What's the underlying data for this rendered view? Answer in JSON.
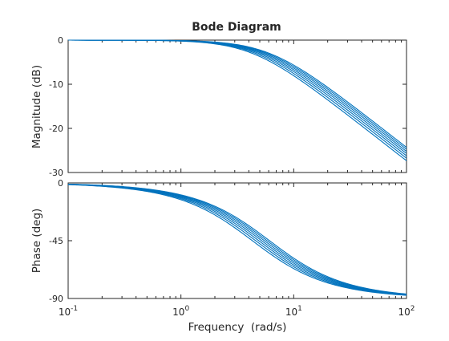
{
  "chart_data": [
    {
      "type": "line",
      "title": "Bode Diagram",
      "ylabel": "Magnitude (dB)",
      "xlabel": "",
      "xscale": "log",
      "xlim": [
        0.1,
        100
      ],
      "ylim": [
        -30,
        0
      ],
      "yticks": [
        0,
        -10,
        -20,
        -30
      ],
      "ytick_labels": [
        "0",
        "-10",
        "-20",
        "-30"
      ],
      "grid": false,
      "color": "#0072bd",
      "model": "first-order low-pass, magnitude = -10*log10(1+(w/wc)^2)",
      "series": [
        {
          "wc": 4.3
        },
        {
          "wc": 4.6
        },
        {
          "wc": 4.9
        },
        {
          "wc": 5.2
        },
        {
          "wc": 5.5
        },
        {
          "wc": 5.8
        },
        {
          "wc": 6.1
        }
      ]
    },
    {
      "type": "line",
      "title": "",
      "ylabel": "Phase (deg)",
      "xlabel": "Frequency  (rad/s)",
      "xscale": "log",
      "xlim": [
        0.1,
        100
      ],
      "ylim": [
        -90,
        0
      ],
      "yticks": [
        0,
        -45,
        -90
      ],
      "ytick_labels": [
        "0",
        "-45",
        "-90"
      ],
      "xtick_bases": [
        "10",
        "10",
        "10",
        "10"
      ],
      "xtick_exponents": [
        "-1",
        "0",
        "1",
        "2"
      ],
      "grid": false,
      "color": "#0072bd",
      "model": "first-order low-pass, phase = -atan(w/wc) in degrees",
      "series": [
        {
          "wc": 4.3
        },
        {
          "wc": 4.6
        },
        {
          "wc": 4.9
        },
        {
          "wc": 5.2
        },
        {
          "wc": 5.5
        },
        {
          "wc": 5.8
        },
        {
          "wc": 6.1
        }
      ]
    }
  ]
}
